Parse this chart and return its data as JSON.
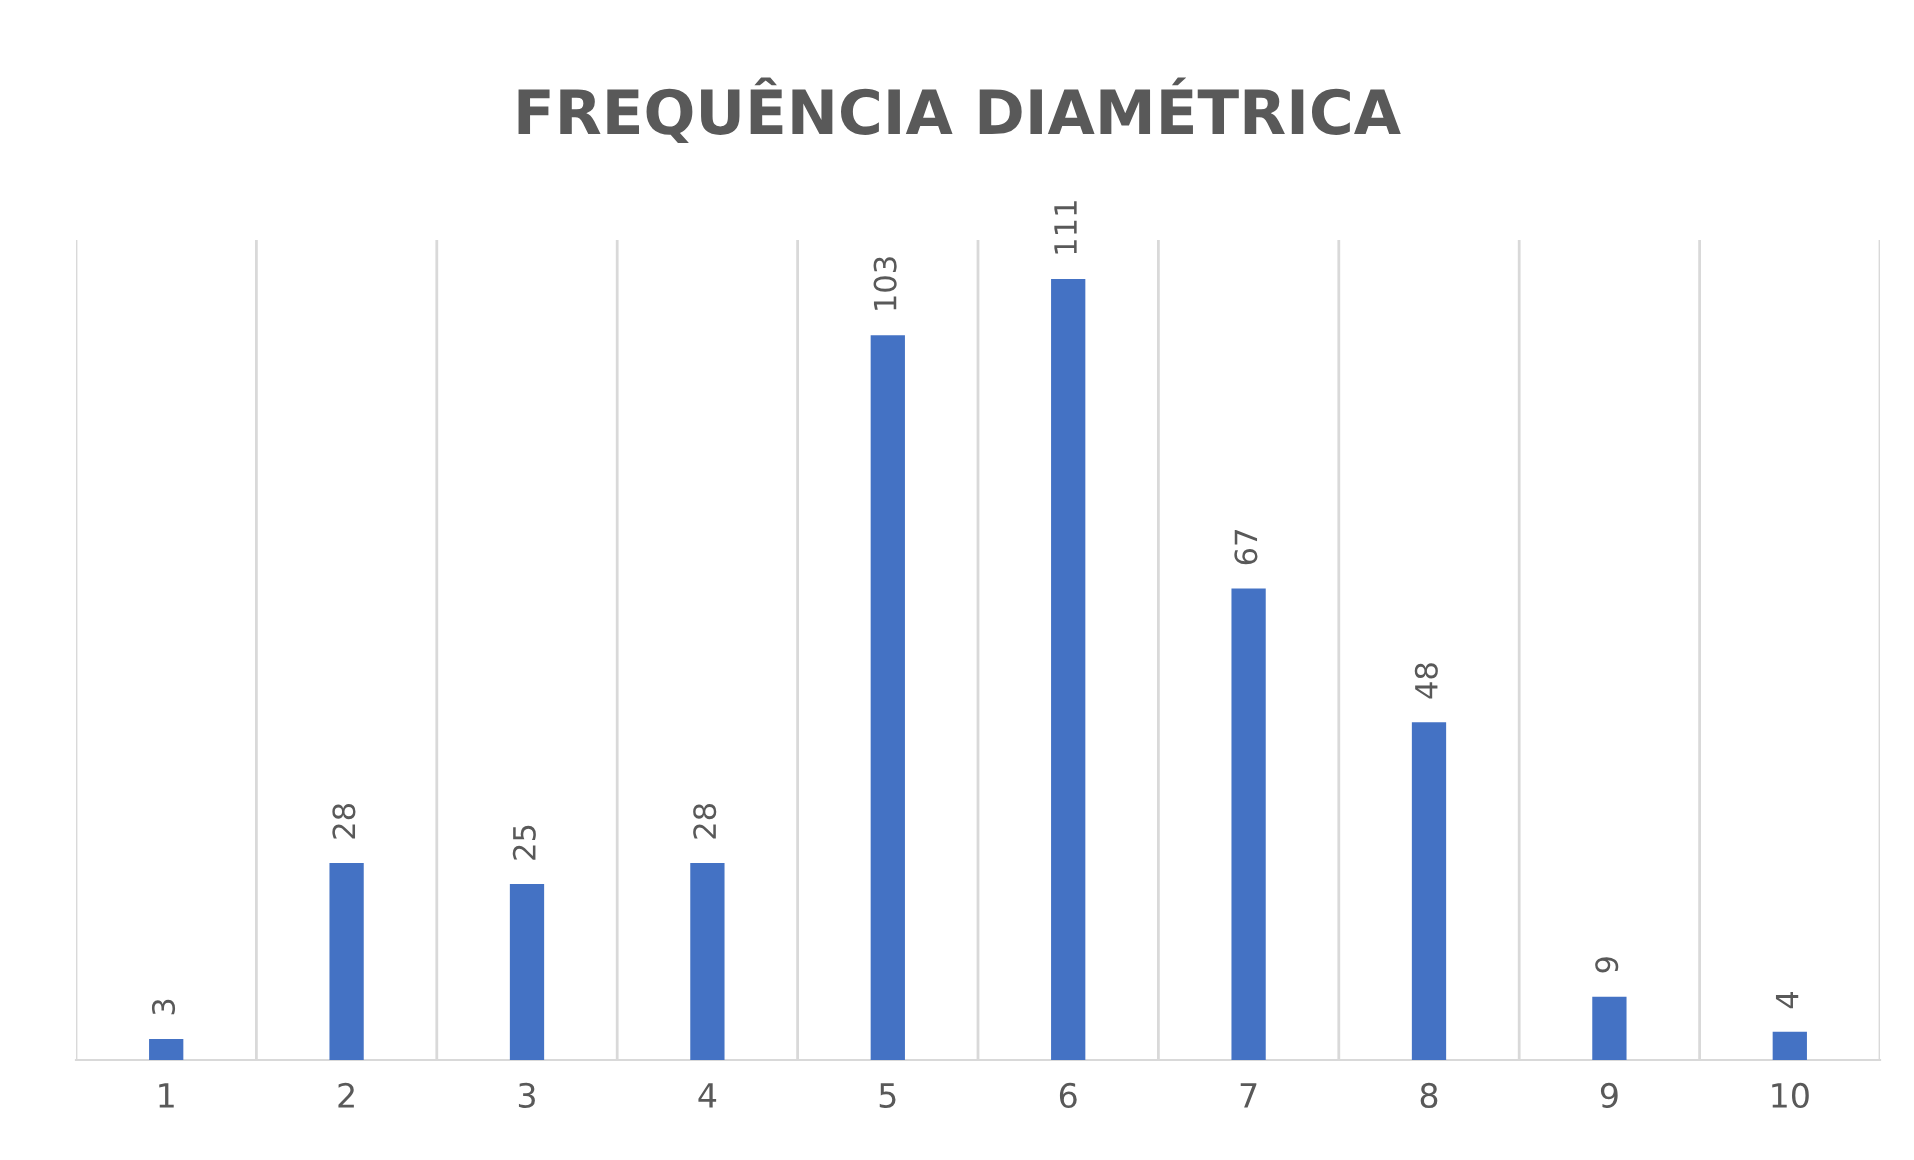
{
  "chart_data": {
    "type": "bar",
    "title": "FREQUÊNCIA DIAMÉTRICA",
    "categories": [
      "1",
      "2",
      "3",
      "4",
      "5",
      "6",
      "7",
      "8",
      "9",
      "10"
    ],
    "values": [
      3,
      28,
      25,
      28,
      103,
      111,
      67,
      48,
      9,
      4
    ],
    "color": "#4472c4",
    "data_labels": true,
    "grid": "x",
    "tick_labels": "x",
    "legend": false
  }
}
